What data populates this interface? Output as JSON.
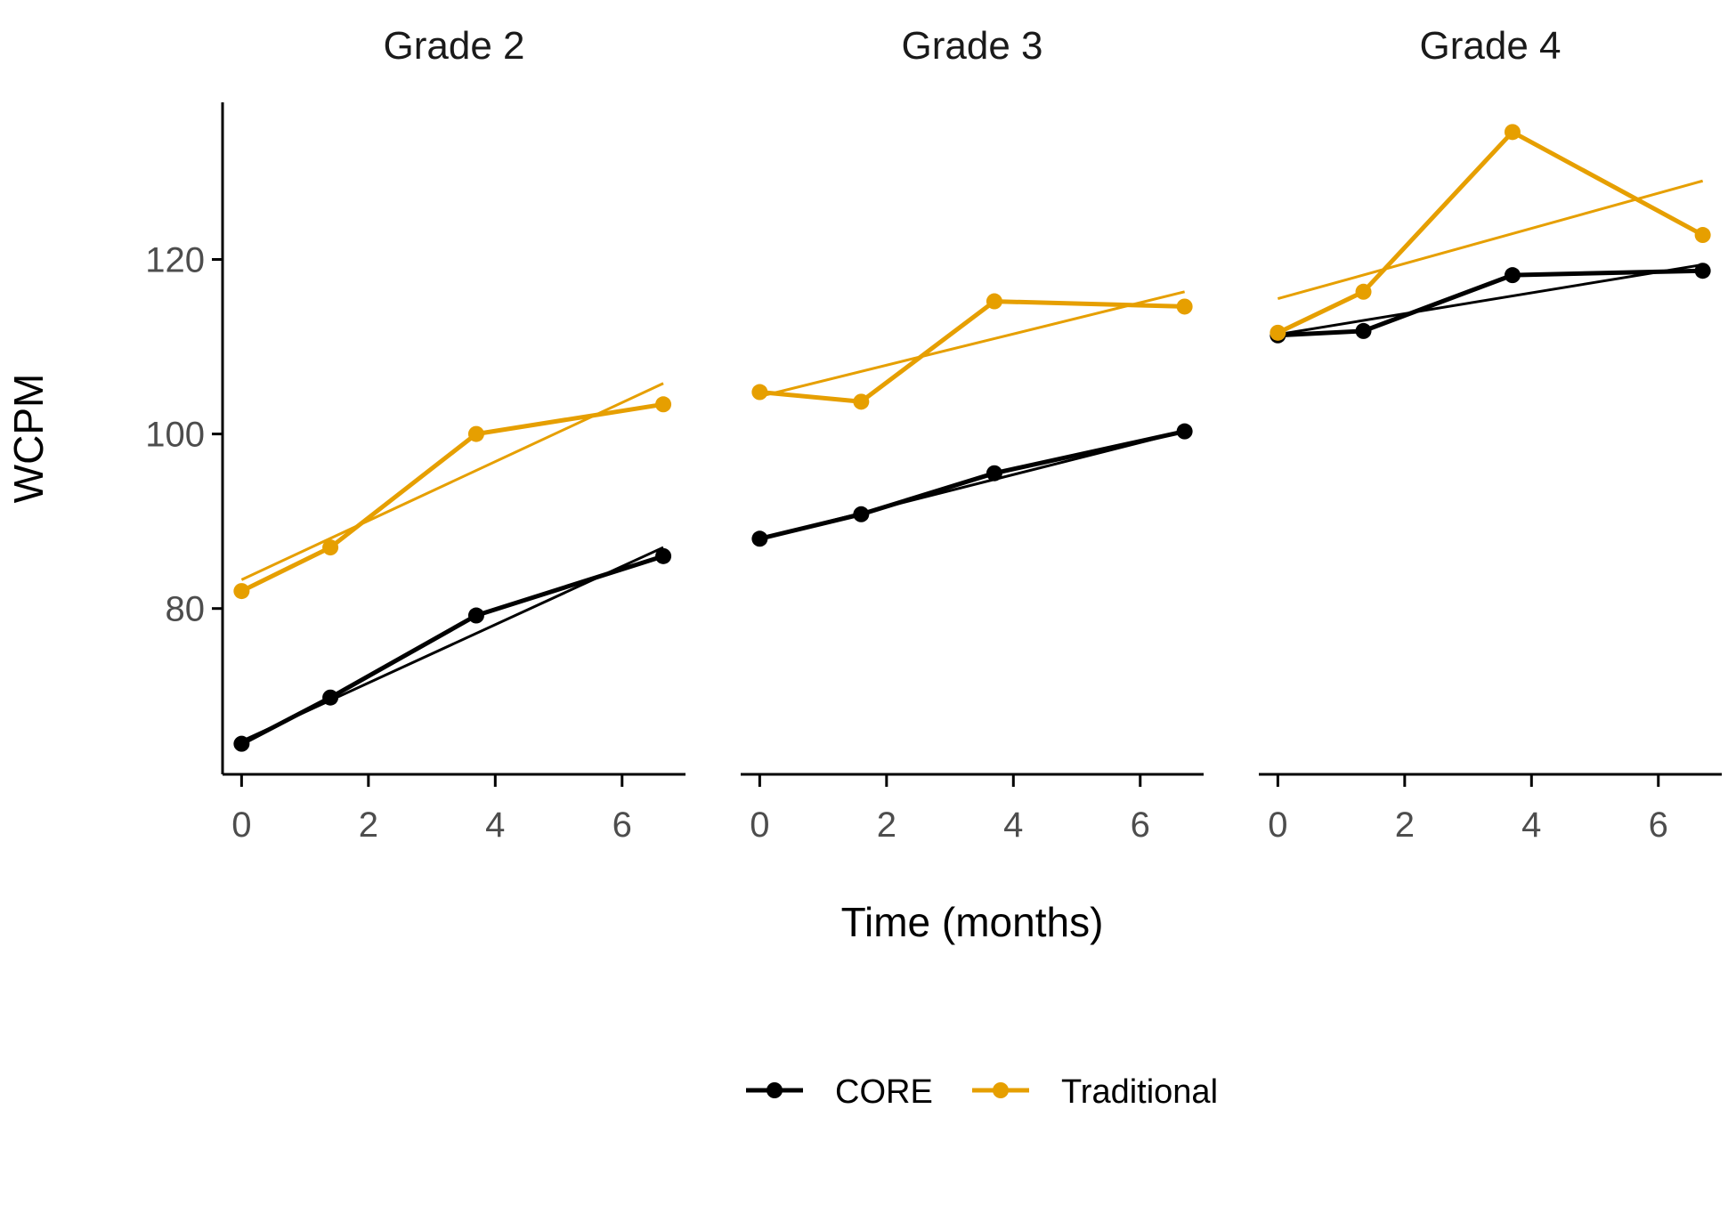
{
  "chart_data": {
    "type": "line",
    "xlabel": "Time (months)",
    "ylabel": "WCPM",
    "xlim": [
      -0.3,
      7.0
    ],
    "ylim": [
      61,
      138
    ],
    "xticks": [
      0,
      2,
      4,
      6
    ],
    "yticks": [
      80,
      100,
      120
    ],
    "grid": false,
    "legend_position": "bottom",
    "legend": [
      {
        "name": "CORE",
        "color": "#000000"
      },
      {
        "name": "Traditional",
        "color": "#E69F00"
      }
    ],
    "panels": [
      {
        "title": "Grade 2",
        "series": [
          {
            "name": "CORE",
            "color": "#000000",
            "x": [
              0,
              1.4,
              3.7,
              6.65
            ],
            "y": [
              64.5,
              69.8,
              79.2,
              86.0
            ],
            "fit": {
              "x": [
                0,
                6.65
              ],
              "y": [
                64.8,
                87.0
              ]
            }
          },
          {
            "name": "Traditional",
            "color": "#E69F00",
            "x": [
              0,
              1.4,
              3.7,
              6.65
            ],
            "y": [
              82.0,
              87.0,
              100.0,
              103.4
            ],
            "fit": {
              "x": [
                0,
                6.65
              ],
              "y": [
                83.3,
                105.8
              ]
            }
          }
        ]
      },
      {
        "title": "Grade 3",
        "series": [
          {
            "name": "CORE",
            "color": "#000000",
            "x": [
              0,
              1.6,
              3.7,
              6.7
            ],
            "y": [
              88.0,
              90.8,
              95.5,
              100.3
            ],
            "fit": {
              "x": [
                0,
                6.7
              ],
              "y": [
                88.0,
                100.3
              ]
            }
          },
          {
            "name": "Traditional",
            "color": "#E69F00",
            "x": [
              0,
              1.6,
              3.7,
              6.7
            ],
            "y": [
              104.8,
              103.7,
              115.2,
              114.6
            ],
            "fit": {
              "x": [
                0,
                6.7
              ],
              "y": [
                104.3,
                116.3
              ]
            }
          }
        ]
      },
      {
        "title": "Grade 4",
        "series": [
          {
            "name": "CORE",
            "color": "#000000",
            "x": [
              0,
              1.35,
              3.7,
              6.7
            ],
            "y": [
              111.3,
              111.8,
              118.2,
              118.7
            ],
            "fit": {
              "x": [
                0,
                6.7
              ],
              "y": [
                111.4,
                119.4
              ]
            }
          },
          {
            "name": "Traditional",
            "color": "#E69F00",
            "x": [
              0,
              1.35,
              3.7,
              6.7
            ],
            "y": [
              111.6,
              116.3,
              134.6,
              122.8
            ],
            "fit": {
              "x": [
                0,
                6.7
              ],
              "y": [
                115.5,
                129.0
              ]
            }
          }
        ]
      }
    ]
  }
}
